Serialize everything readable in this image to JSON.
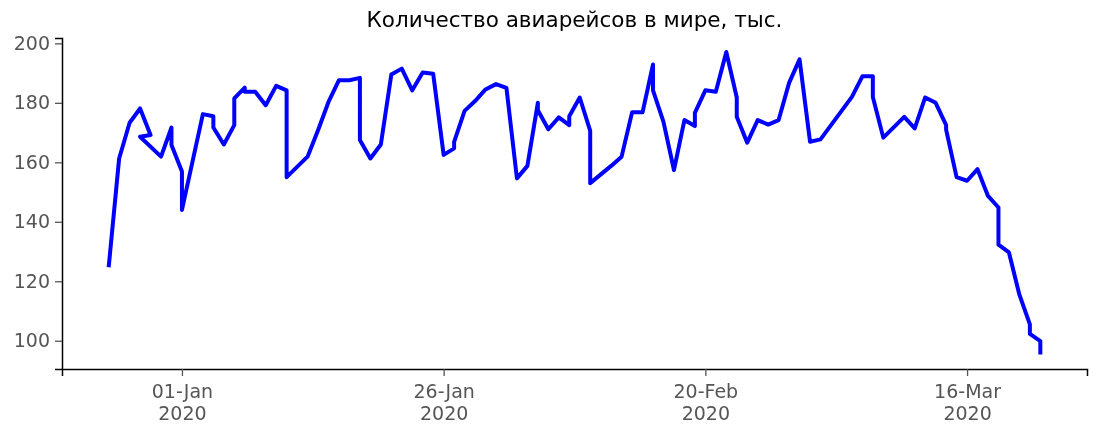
{
  "chart_data": {
    "type": "line",
    "title": "Количество авиарейсов в мире, тыс.",
    "x": [
      "2019-12-25",
      "2019-12-26",
      "2019-12-27",
      "2019-12-28",
      "2019-12-29",
      "2019-12-28",
      "2019-12-30",
      "2019-12-31",
      "2019-12-31",
      "2020-01-01",
      "2020-01-01",
      "2020-01-03",
      "2020-01-04",
      "2020-01-04",
      "2020-01-05",
      "2020-01-06",
      "2020-01-06",
      "2020-01-07",
      "2020-01-07",
      "2020-01-08",
      "2020-01-09",
      "2020-01-10",
      "2020-01-11",
      "2020-01-11",
      "2020-01-13",
      "2020-01-14",
      "2020-01-15",
      "2020-01-16",
      "2020-01-17",
      "2020-01-18",
      "2020-01-18",
      "2020-01-19",
      "2020-01-20",
      "2020-01-21",
      "2020-01-22",
      "2020-01-23",
      "2020-01-24",
      "2020-01-25",
      "2020-01-26",
      "2020-01-27",
      "2020-01-27",
      "2020-01-28",
      "2020-01-29",
      "2020-01-30",
      "2020-01-31",
      "2020-02-01",
      "2020-02-02",
      "2020-02-03",
      "2020-02-04",
      "2020-02-04",
      "2020-02-05",
      "2020-02-06",
      "2020-02-07",
      "2020-02-07",
      "2020-02-08",
      "2020-02-09",
      "2020-02-09",
      "2020-02-11",
      "2020-02-12",
      "2020-02-13",
      "2020-02-14",
      "2020-02-15",
      "2020-02-15",
      "2020-02-16",
      "2020-02-17",
      "2020-02-18",
      "2020-02-19",
      "2020-02-19",
      "2020-02-20",
      "2020-02-21",
      "2020-02-22",
      "2020-02-23",
      "2020-02-23",
      "2020-02-24",
      "2020-02-25",
      "2020-02-26",
      "2020-02-27",
      "2020-02-28",
      "2020-02-29",
      "2020-03-01",
      "2020-03-02",
      "2020-03-05",
      "2020-03-06",
      "2020-03-07",
      "2020-03-07",
      "2020-03-08",
      "2020-03-10",
      "2020-03-11",
      "2020-03-12",
      "2020-03-13",
      "2020-03-14",
      "2020-03-14",
      "2020-03-15",
      "2020-03-16",
      "2020-03-17",
      "2020-03-18",
      "2020-03-19",
      "2020-03-19",
      "2020-03-20",
      "2020-03-21",
      "2020-03-22",
      "2020-03-22",
      "2020-03-23",
      "2020-03-23"
    ],
    "values": [
      124.7,
      161.3,
      173.3,
      178.1,
      169.2,
      168.6,
      161.9,
      171.7,
      165.8,
      156.9,
      144.0,
      176.2,
      175.5,
      171.7,
      166.0,
      172.5,
      181.5,
      185.1,
      183.7,
      183.7,
      179.2,
      185.7,
      184.2,
      155.0,
      161.9,
      170.8,
      180.3,
      187.6,
      187.6,
      188.4,
      167.5,
      161.3,
      166.0,
      189.5,
      191.5,
      184.2,
      190.2,
      189.8,
      162.5,
      164.7,
      166.9,
      177.3,
      180.6,
      184.5,
      186.3,
      185.0,
      154.6,
      158.8,
      180.0,
      177.5,
      171.1,
      175.1,
      172.5,
      175.5,
      181.8,
      170.6,
      153.0,
      158.8,
      161.9,
      176.8,
      176.8,
      192.9,
      184.2,
      173.6,
      157.4,
      174.2,
      172.2,
      176.6,
      184.2,
      183.7,
      197.1,
      181.8,
      175.3,
      166.6,
      174.2,
      172.7,
      174.2,
      186.7,
      194.6,
      166.9,
      167.7,
      182.0,
      188.9,
      188.9,
      182.0,
      168.3,
      175.3,
      171.4,
      181.8,
      180.0,
      172.5,
      171.0,
      155.0,
      153.8,
      157.7,
      148.7,
      144.8,
      132.3,
      129.7,
      115.5,
      105.5,
      102.3,
      99.9,
      95.4
    ],
    "color": "#0000ff",
    "xlim": [
      "2019-12-20T13:00",
      "2020-03-27T11:00"
    ],
    "xticks": [
      {
        "value": "2020-01-01",
        "label": "01-Jan\n2020"
      },
      {
        "value": "2020-01-26",
        "label": "26-Jan\n2020"
      },
      {
        "value": "2020-02-20",
        "label": "20-Feb\n2020"
      },
      {
        "value": "2020-03-16",
        "label": "16-Mar\n2020"
      }
    ],
    "ylim": [
      90.5,
      201.8
    ],
    "yticks": [
      100,
      120,
      140,
      160,
      180,
      200
    ]
  }
}
